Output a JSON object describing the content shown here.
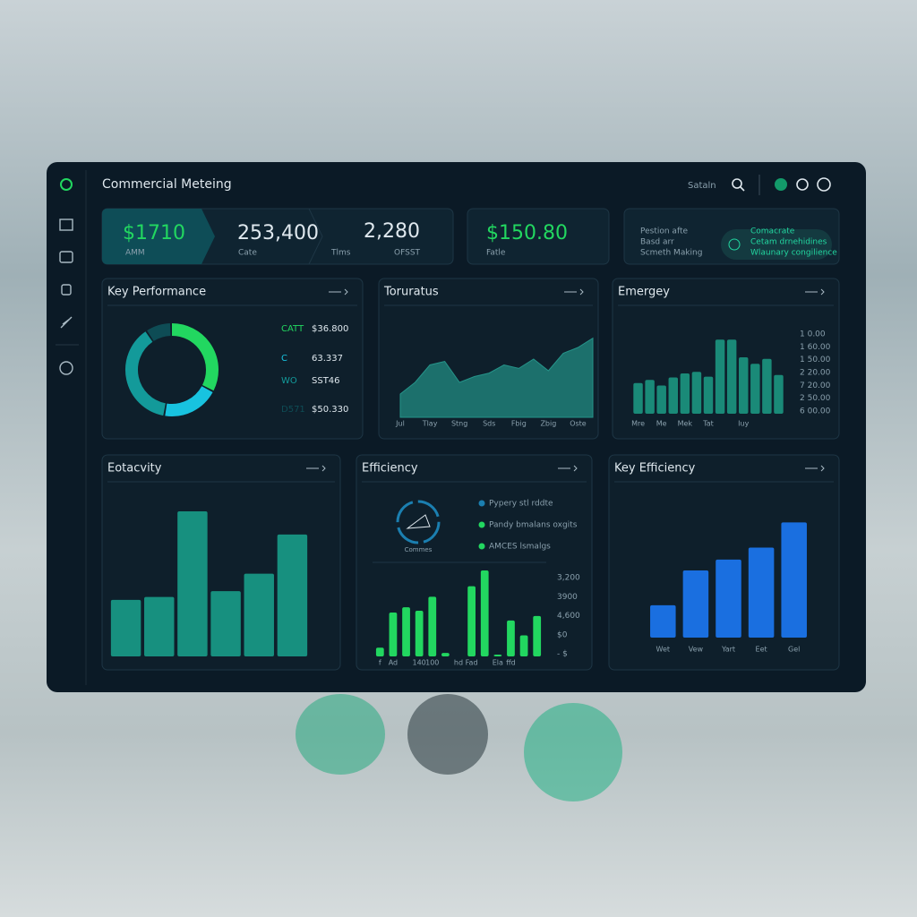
{
  "header": {
    "title": "Commercial Meteing",
    "search": "Sataln"
  },
  "kpis": [
    {
      "value": "$1710",
      "label": "AMM"
    },
    {
      "value": "253,400",
      "label": "Cate"
    },
    {
      "value": "2,280",
      "label": "Tlms",
      "note": "OFSST"
    },
    {
      "value": "$150.80",
      "label": "Fatle"
    }
  ],
  "info_card": {
    "left": [
      "Pestion afte",
      "Basd arr",
      "Scmeth Making"
    ],
    "right": [
      "Comacrate",
      "Cetam drnehidines",
      "Wlaunary congilience"
    ]
  },
  "chart_data": [
    {
      "type": "donut",
      "title": "Key Performance",
      "categories": [
        "CATT",
        "C",
        "WO",
        "D571"
      ],
      "amounts": [
        "$36.800",
        "63.337",
        "SST46",
        "$50.330"
      ],
      "values": [
        33,
        20,
        38,
        9
      ],
      "colors": [
        "#22d760",
        "#18c3e0",
        "#139a9a",
        "#0e4c55"
      ]
    },
    {
      "type": "area",
      "title": "Toruratus",
      "categories": [
        "Jul",
        null,
        "Tlay",
        null,
        "Stng",
        null,
        "Sds",
        null,
        "Fbig",
        null,
        "Zbig",
        null,
        "Oste",
        null
      ],
      "values": [
        20,
        30,
        45,
        48,
        30,
        35,
        38,
        45,
        42,
        50,
        40,
        55,
        60,
        68
      ],
      "ylim": [
        0,
        80
      ],
      "color": "#1f7f78"
    },
    {
      "type": "bar",
      "title": "Emergey",
      "categories": [
        "Mre",
        null,
        "Me",
        null,
        "Mek",
        null,
        "Tat",
        null,
        null,
        "Iuy",
        null,
        null,
        null
      ],
      "values": [
        38,
        42,
        35,
        45,
        50,
        52,
        46,
        92,
        92,
        70,
        62,
        68,
        48
      ],
      "ylim": [
        0,
        100
      ],
      "color": "#1a8a78",
      "axis_labels": [
        "1 0.00",
        "1 60.00",
        "1 50.00",
        "2 20.00",
        "7 20.00",
        "2 50.00",
        "6 00.00"
      ]
    },
    {
      "type": "bar",
      "title": "Eotacvity",
      "categories": [
        null,
        null,
        null,
        null,
        null,
        null
      ],
      "values": [
        39,
        41,
        100,
        45,
        57,
        84
      ],
      "ylim": [
        0,
        100
      ],
      "color": "#17907f"
    },
    {
      "type": "bar",
      "title": "Efficiency",
      "categories": [
        "f",
        "Ad",
        null,
        "140",
        "100",
        null,
        "hd",
        "Fad",
        null,
        "Ela",
        "ffd",
        null,
        null
      ],
      "values": [
        10,
        50,
        56,
        52,
        68,
        4,
        0,
        80,
        98,
        2,
        41,
        24,
        46
      ],
      "ylim": [
        0,
        100
      ],
      "color": "#22d760",
      "axis_labels": [
        "3,200",
        "3900",
        "4,600",
        "$0",
        "- $"
      ],
      "legend_items": [
        "Pypery stl rddte",
        "Pandy bmalans oxgits",
        "AMCES lsmalgs"
      ],
      "icon_label": "Commes"
    },
    {
      "type": "bar",
      "title": "Key Efficiency",
      "categories": [
        "Wet",
        "Vew",
        "Yart",
        "Eet",
        "Gel"
      ],
      "values": [
        27,
        56,
        65,
        75,
        96
      ],
      "ylim": [
        0,
        100
      ],
      "color": "#1a6fe0"
    }
  ]
}
